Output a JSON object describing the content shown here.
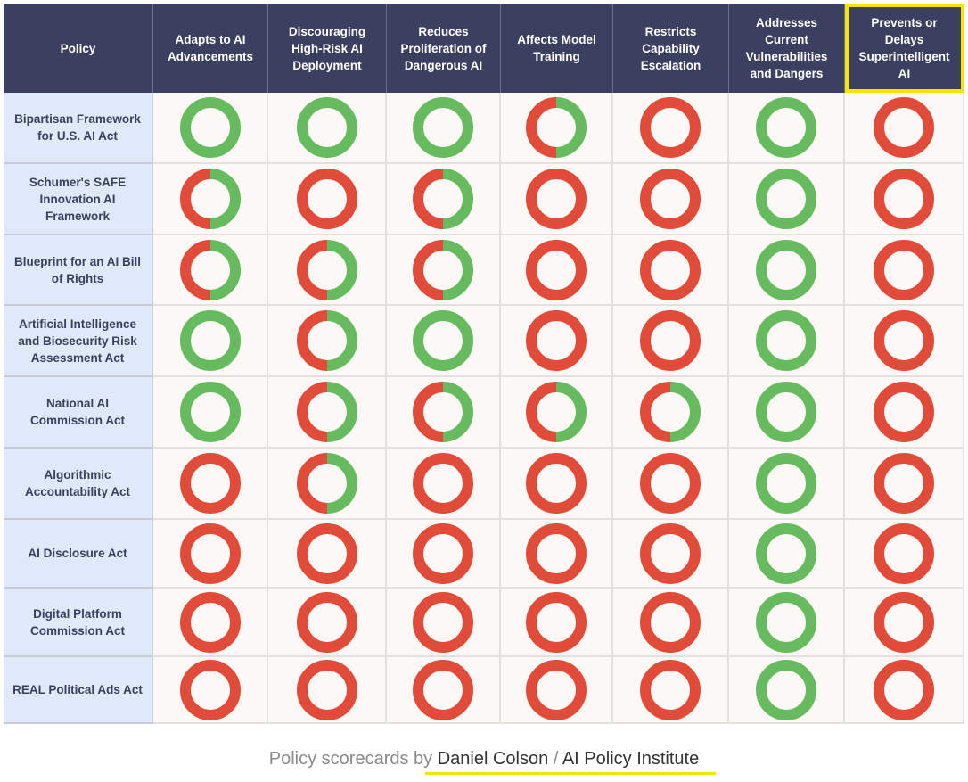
{
  "table": {
    "headers": [
      "Policy",
      "Adapts to AI Advancements",
      "Discouraging High-Risk AI Deployment",
      "Reduces Proliferation of Dangerous AI",
      "Affects Model Training",
      "Restricts Capability Escalation",
      "Addresses Current Vulnerabilities and Dangers",
      "Prevents or Delays Superintelligent AI"
    ],
    "rows": [
      {
        "policy": "Bipartisan Framework for U.S. AI Act",
        "ratings": [
          1,
          1,
          1,
          0.5,
          0,
          1,
          0
        ]
      },
      {
        "policy": "Schumer's SAFE Innovation AI Framework",
        "ratings": [
          0.5,
          0,
          0.5,
          0,
          0,
          1,
          0
        ]
      },
      {
        "policy": "Blueprint for an AI Bill of Rights",
        "ratings": [
          0.5,
          0.5,
          0.5,
          0,
          0,
          1,
          0
        ]
      },
      {
        "policy": "Artificial Intelligence and Biosecurity Risk Assessment Act",
        "ratings": [
          1,
          0.5,
          1,
          0,
          0,
          1,
          0
        ]
      },
      {
        "policy": "National AI Commission Act",
        "ratings": [
          1,
          0.5,
          0.5,
          0.5,
          0.5,
          1,
          0
        ]
      },
      {
        "policy": "Algorithmic Accountability Act",
        "ratings": [
          0,
          0.5,
          0,
          0,
          0,
          1,
          0
        ]
      },
      {
        "policy": "AI Disclosure Act",
        "ratings": [
          0,
          0,
          0,
          0,
          0,
          1,
          0
        ]
      },
      {
        "policy": "Digital Platform Commission Act",
        "ratings": [
          0,
          0,
          0,
          0,
          0,
          1,
          0
        ]
      },
      {
        "policy": "REAL Political Ads Act",
        "ratings": [
          0,
          0,
          0,
          0,
          0,
          1,
          0
        ]
      }
    ]
  },
  "caption": {
    "prefix": "Policy scorecards by",
    "author": "Daniel Colson",
    "separator": "/",
    "org": "AI Policy Institute"
  }
}
